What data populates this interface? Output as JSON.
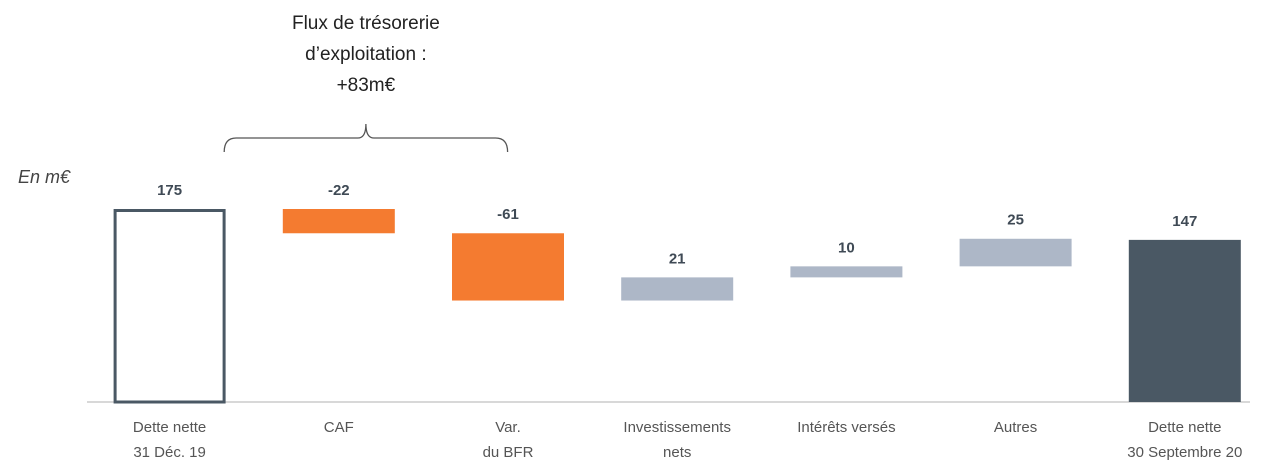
{
  "chart_data": {
    "type": "waterfall",
    "unit_label": "En m€",
    "annotation": [
      "Flux de trésorerie",
      "d’exploitation :",
      "+83m€"
    ],
    "categories": [
      [
        "Dette nette",
        "31 Déc. 19"
      ],
      [
        "CAF"
      ],
      [
        "Var.",
        "du BFR"
      ],
      [
        "Investissements",
        "nets"
      ],
      [
        "Intérêts versés"
      ],
      [
        "Autres"
      ],
      [
        "Dette nette",
        "30 Septembre 20"
      ]
    ],
    "values": [
      175,
      -22,
      -61,
      21,
      10,
      25,
      147
    ],
    "measures": [
      "total",
      "relative",
      "relative",
      "relative",
      "relative",
      "relative",
      "total"
    ],
    "bar_styles": [
      "outline",
      "fill",
      "fill",
      "fill",
      "fill",
      "fill",
      "fill"
    ],
    "colors": [
      "#4a5864",
      "#f47b30",
      "#f47b30",
      "#adb7c7",
      "#adb7c7",
      "#adb7c7",
      "#4a5864"
    ]
  }
}
